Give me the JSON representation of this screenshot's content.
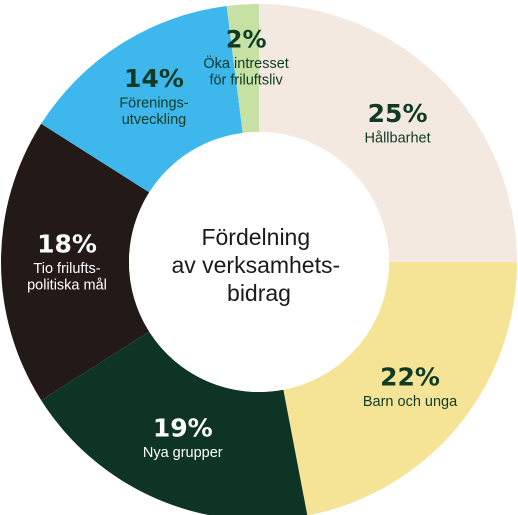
{
  "chart_data": {
    "type": "pie",
    "title_lines": [
      "Fördelning",
      "av verksamhets-",
      "bidrag"
    ],
    "unit": "%",
    "slices": [
      {
        "pct_text": "25%",
        "value": 25,
        "label_lines": [
          "Hållbarhet"
        ],
        "color": "#f3e9e0",
        "text_color": "#0f3a26"
      },
      {
        "pct_text": "22%",
        "value": 22,
        "label_lines": [
          "Barn och unga"
        ],
        "color": "#f6e496",
        "text_color": "#0f3a26"
      },
      {
        "pct_text": "19%",
        "value": 19,
        "label_lines": [
          "Nya grupper"
        ],
        "color": "#0d3425",
        "text_color": "#ffffff"
      },
      {
        "pct_text": "18%",
        "value": 18,
        "label_lines": [
          "Tio frilufts-",
          "politiska mål"
        ],
        "color": "#231a17",
        "text_color": "#ffffff"
      },
      {
        "pct_text": "14%",
        "value": 14,
        "label_lines": [
          "Förenings-",
          "utveckling"
        ],
        "color": "#3eb8ec",
        "text_color": "#0f3a26"
      },
      {
        "pct_text": "2%",
        "value": 2,
        "label_lines": [
          "Öka intresset",
          "för friluftsliv"
        ],
        "color": "#c7e0a4",
        "text_color": "#0f3a26"
      }
    ]
  }
}
